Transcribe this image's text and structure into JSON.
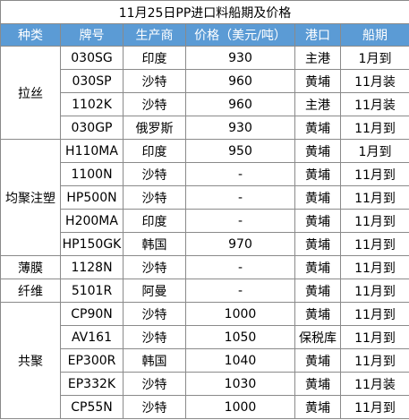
{
  "title": "11月25日PP进口料船期及价格",
  "headers": [
    "种类",
    "牌号",
    "生产商",
    "价格（美元/吨）",
    "港口",
    "船期"
  ],
  "groups": [
    {
      "category": "拉丝",
      "rows": [
        [
          "030SG",
          "印度",
          "930",
          "主港",
          "1月到"
        ],
        [
          "030SP",
          "沙特",
          "960",
          "黄埔",
          "11月装"
        ],
        [
          "1102K",
          "沙特",
          "960",
          "主港",
          "11月装"
        ],
        [
          "030GP",
          "俄罗斯",
          "930",
          "黄埔",
          "11月到"
        ]
      ]
    },
    {
      "category": "均聚注塑",
      "rows": [
        [
          "H110MA",
          "印度",
          "950",
          "黄埔",
          "1月到"
        ],
        [
          "1100N",
          "沙特",
          "-",
          "黄埔",
          "11月到"
        ],
        [
          "HP500N",
          "沙特",
          "-",
          "黄埔",
          "11月到"
        ],
        [
          "H200MA",
          "印度",
          "-",
          "黄埔",
          "11月到"
        ],
        [
          "HP150GK",
          "韩国",
          "970",
          "黄埔",
          "11月到"
        ]
      ]
    },
    {
      "category": "薄膜",
      "rows": [
        [
          "1128N",
          "沙特",
          "-",
          "黄埔",
          "11月到"
        ]
      ]
    },
    {
      "category": "纤维",
      "rows": [
        [
          "5101R",
          "阿曼",
          "-",
          "黄埔",
          "11月到"
        ]
      ]
    },
    {
      "category": "共聚",
      "rows": [
        [
          "CP90N",
          "沙特",
          "1000",
          "黄埔",
          "11月到"
        ],
        [
          "AV161",
          "沙特",
          "1050",
          "保税库",
          "11月到"
        ],
        [
          "EP300R",
          "韩国",
          "1040",
          "黄埔",
          "11月到"
        ],
        [
          "EP332K",
          "沙特",
          "1030",
          "黄埔",
          "11月装"
        ],
        [
          "CP55N",
          "沙特",
          "1000",
          "黄埔",
          "11月到"
        ]
      ]
    }
  ],
  "colors": {
    "header_bg": "#5b9bd5",
    "header_text": "#ffffff",
    "border": "#8a8a8a"
  }
}
